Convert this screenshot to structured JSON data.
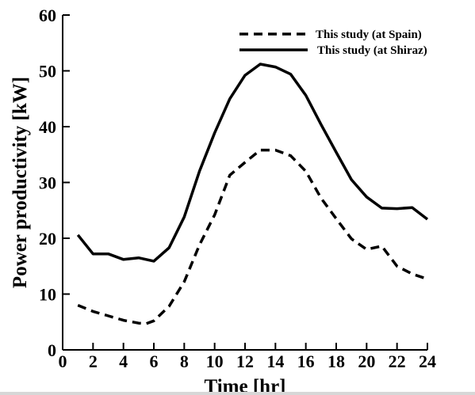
{
  "chart_data": {
    "type": "line",
    "title": "",
    "xlabel": "Time [hr]",
    "ylabel": "Power productivity [kW]",
    "xlim": [
      0,
      24
    ],
    "ylim": [
      0,
      60
    ],
    "x_ticks": [
      0,
      2,
      4,
      6,
      8,
      10,
      12,
      14,
      16,
      18,
      20,
      22,
      24
    ],
    "y_ticks": [
      0,
      10,
      20,
      30,
      40,
      50,
      60
    ],
    "grid": false,
    "legend": "top-right",
    "series": [
      {
        "name": "This study (at Spain)",
        "style": "dashed",
        "color": "#000000",
        "x": [
          1,
          2,
          3,
          4,
          5,
          5.5,
          6,
          7,
          8,
          9,
          10,
          11,
          12,
          13,
          14,
          15,
          16,
          17,
          18,
          19,
          20,
          21,
          22,
          23,
          24
        ],
        "y": [
          8,
          6.9,
          6.1,
          5.3,
          4.8,
          4.7,
          5.2,
          7.8,
          12.2,
          18.8,
          24.2,
          31.3,
          33.6,
          35.8,
          35.8,
          34.8,
          32,
          27.2,
          23.5,
          19.9,
          18,
          18.6,
          15,
          13.6,
          12.7
        ]
      },
      {
        "name": "This study (at Shiraz)",
        "style": "solid",
        "color": "#000000",
        "x": [
          1,
          2,
          3,
          4,
          5,
          6,
          7,
          8,
          9,
          10,
          11,
          12,
          13,
          14,
          15,
          16,
          17,
          18,
          19,
          20,
          21,
          22,
          23,
          24
        ],
        "y": [
          20.6,
          17.2,
          17.2,
          16.2,
          16.5,
          15.9,
          18.3,
          23.8,
          32,
          38.9,
          45,
          49.2,
          51.2,
          50.7,
          49.4,
          45.6,
          40.4,
          35.4,
          30.5,
          27.4,
          25.4,
          25.3,
          25.5,
          23.4
        ]
      }
    ]
  }
}
